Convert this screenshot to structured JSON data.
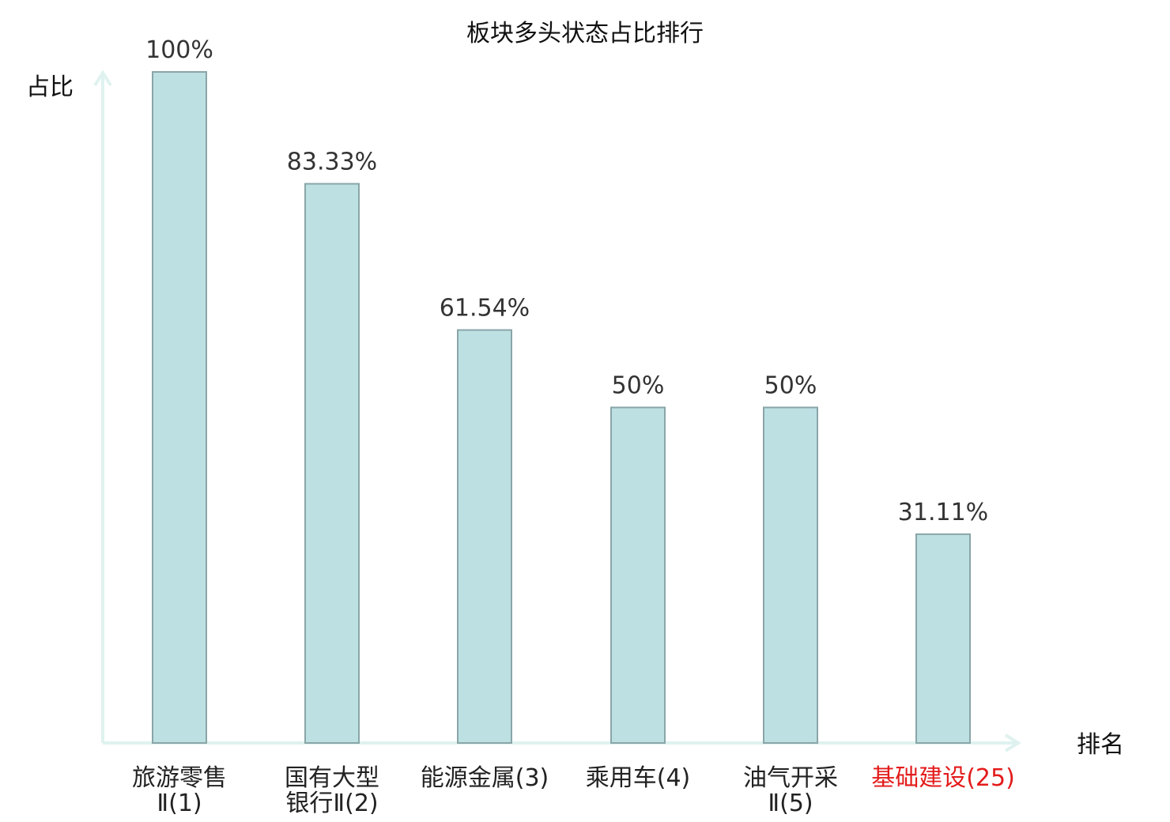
{
  "chart_data": {
    "type": "bar",
    "title": "板块多头状态占比排行",
    "ylabel": "占比",
    "xlabel": "排名",
    "ylim": [
      0,
      100
    ],
    "grid": false,
    "categories": [
      {
        "lines": [
          "旅游零售",
          "Ⅱ(1)"
        ],
        "highlight": false
      },
      {
        "lines": [
          "国有大型",
          "银行Ⅱ(2)"
        ],
        "highlight": false
      },
      {
        "lines": [
          "能源金属(3)"
        ],
        "highlight": false
      },
      {
        "lines": [
          "乘用车(4)"
        ],
        "highlight": false
      },
      {
        "lines": [
          "油气开采",
          "Ⅱ(5)"
        ],
        "highlight": false
      },
      {
        "lines": [
          "基础建设(25)"
        ],
        "highlight": true
      }
    ],
    "values": [
      100,
      83.33,
      61.54,
      50,
      50,
      31.11
    ],
    "value_labels": [
      "100%",
      "83.33%",
      "61.54%",
      "50%",
      "50%",
      "31.11%"
    ],
    "colors": {
      "bar_fill": "#bde0e3",
      "bar_stroke": "#8aa5a8",
      "axis": "#dff2ef",
      "text": "#222222",
      "highlight": "#e31b1b"
    }
  }
}
